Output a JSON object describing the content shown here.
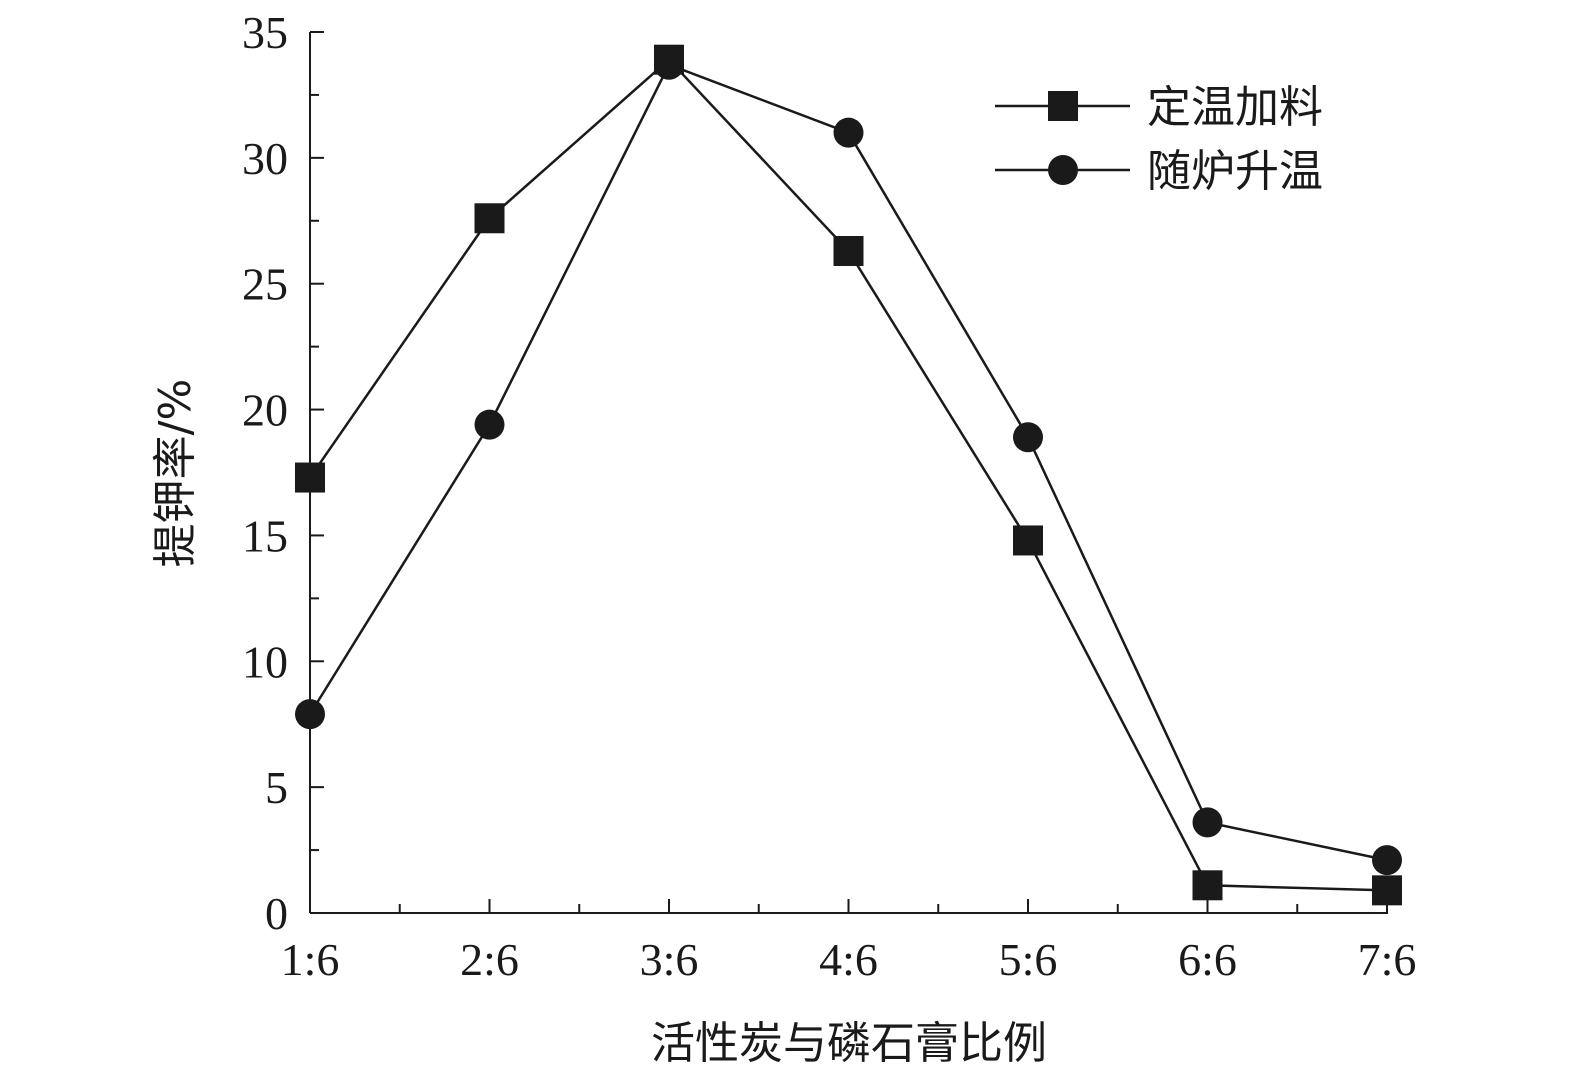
{
  "chart_data": {
    "type": "line",
    "categories": [
      "1:6",
      "2:6",
      "3:6",
      "4:6",
      "5:6",
      "6:6",
      "7:6"
    ],
    "xlabel": "活性炭与磷石膏比例",
    "ylabel": "提钾率/%",
    "ylim": [
      0,
      35
    ],
    "yticks": [
      0,
      5,
      10,
      15,
      20,
      25,
      30,
      35
    ],
    "grid": false,
    "legend_position": "top-right",
    "series": [
      {
        "name": "定温加料",
        "marker": "square",
        "values": [
          17.3,
          27.6,
          33.9,
          26.3,
          14.8,
          1.1,
          0.9
        ]
      },
      {
        "name": "随炉升温",
        "marker": "circle",
        "values": [
          7.9,
          19.4,
          33.7,
          31.0,
          18.9,
          3.6,
          2.1
        ]
      }
    ]
  }
}
